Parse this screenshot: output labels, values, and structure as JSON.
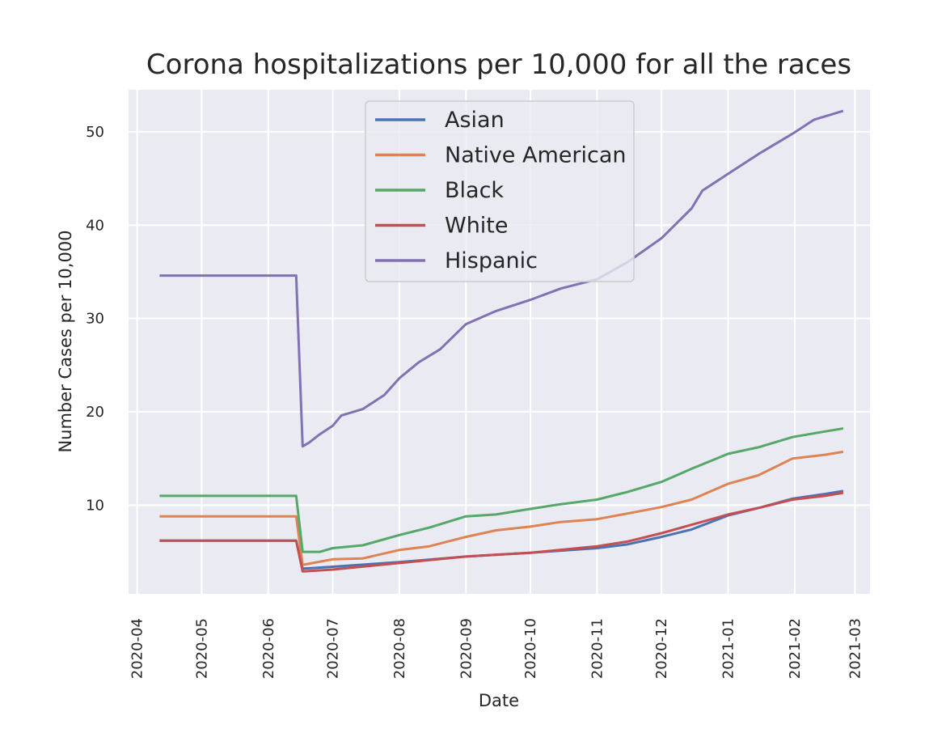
{
  "chart_data": {
    "type": "line",
    "title": "Corona hospitalizations per 10,000 for all the races",
    "xlabel": "Date",
    "ylabel": "Number Cases per 10,000",
    "x_ticks": [
      "2020-04",
      "2020-05",
      "2020-06",
      "2020-07",
      "2020-08",
      "2020-09",
      "2020-10",
      "2020-11",
      "2020-12",
      "2021-01",
      "2021-02",
      "2021-03"
    ],
    "y_ticks": [
      10,
      20,
      30,
      40,
      50
    ],
    "xlim": [
      "2020-03-28",
      "2021-03-08"
    ],
    "ylim": [
      0.5,
      54.5
    ],
    "grid": true,
    "legend_position": "top-center",
    "series": [
      {
        "name": "Asian",
        "color": "#4c72b0",
        "points": [
          [
            "2020-04-12",
            6.2
          ],
          [
            "2020-06-14",
            6.2
          ],
          [
            "2020-06-17",
            3.2
          ],
          [
            "2020-07-01",
            3.4
          ],
          [
            "2020-08-01",
            3.9
          ],
          [
            "2020-09-01",
            4.5
          ],
          [
            "2020-10-01",
            4.9
          ],
          [
            "2020-11-01",
            5.4
          ],
          [
            "2020-11-15",
            5.8
          ],
          [
            "2020-12-01",
            6.6
          ],
          [
            "2020-12-15",
            7.4
          ],
          [
            "2021-01-01",
            8.9
          ],
          [
            "2021-01-15",
            9.7
          ],
          [
            "2021-01-31",
            10.7
          ],
          [
            "2021-02-15",
            11.2
          ],
          [
            "2021-02-23",
            11.5
          ]
        ]
      },
      {
        "name": "Native American",
        "color": "#dd8452",
        "points": [
          [
            "2020-04-12",
            8.8
          ],
          [
            "2020-06-14",
            8.8
          ],
          [
            "2020-06-17",
            3.6
          ],
          [
            "2020-07-01",
            4.2
          ],
          [
            "2020-07-15",
            4.3
          ],
          [
            "2020-08-01",
            5.2
          ],
          [
            "2020-08-15",
            5.6
          ],
          [
            "2020-09-01",
            6.6
          ],
          [
            "2020-09-15",
            7.3
          ],
          [
            "2020-10-01",
            7.7
          ],
          [
            "2020-10-15",
            8.2
          ],
          [
            "2020-11-01",
            8.5
          ],
          [
            "2020-11-15",
            9.1
          ],
          [
            "2020-12-01",
            9.8
          ],
          [
            "2020-12-15",
            10.6
          ],
          [
            "2021-01-01",
            12.3
          ],
          [
            "2021-01-15",
            13.2
          ],
          [
            "2021-01-31",
            15.0
          ],
          [
            "2021-02-15",
            15.4
          ],
          [
            "2021-02-23",
            15.7
          ]
        ]
      },
      {
        "name": "Black",
        "color": "#55a868",
        "points": [
          [
            "2020-04-12",
            11.0
          ],
          [
            "2020-06-14",
            11.0
          ],
          [
            "2020-06-17",
            5.0
          ],
          [
            "2020-06-25",
            5.0
          ],
          [
            "2020-07-01",
            5.4
          ],
          [
            "2020-07-15",
            5.7
          ],
          [
            "2020-08-01",
            6.8
          ],
          [
            "2020-08-15",
            7.6
          ],
          [
            "2020-09-01",
            8.8
          ],
          [
            "2020-09-15",
            9.0
          ],
          [
            "2020-10-01",
            9.6
          ],
          [
            "2020-10-15",
            10.1
          ],
          [
            "2020-11-01",
            10.6
          ],
          [
            "2020-11-15",
            11.4
          ],
          [
            "2020-12-01",
            12.5
          ],
          [
            "2020-12-15",
            13.9
          ],
          [
            "2021-01-01",
            15.5
          ],
          [
            "2021-01-15",
            16.2
          ],
          [
            "2021-01-31",
            17.3
          ],
          [
            "2021-02-15",
            17.9
          ],
          [
            "2021-02-23",
            18.2
          ]
        ]
      },
      {
        "name": "White",
        "color": "#c44e52",
        "points": [
          [
            "2020-04-12",
            6.2
          ],
          [
            "2020-06-14",
            6.2
          ],
          [
            "2020-06-17",
            2.9
          ],
          [
            "2020-07-01",
            3.1
          ],
          [
            "2020-08-01",
            3.8
          ],
          [
            "2020-09-01",
            4.5
          ],
          [
            "2020-10-01",
            4.9
          ],
          [
            "2020-11-01",
            5.6
          ],
          [
            "2020-11-15",
            6.1
          ],
          [
            "2020-12-01",
            7.0
          ],
          [
            "2020-12-15",
            7.9
          ],
          [
            "2021-01-01",
            9.0
          ],
          [
            "2021-01-15",
            9.7
          ],
          [
            "2021-01-31",
            10.6
          ],
          [
            "2021-02-15",
            11.0
          ],
          [
            "2021-02-23",
            11.3
          ]
        ]
      },
      {
        "name": "Hispanic",
        "color": "#8172b3",
        "points": [
          [
            "2020-04-12",
            34.6
          ],
          [
            "2020-06-14",
            34.6
          ],
          [
            "2020-06-17",
            16.3
          ],
          [
            "2020-06-20",
            16.7
          ],
          [
            "2020-06-25",
            17.6
          ],
          [
            "2020-07-01",
            18.5
          ],
          [
            "2020-07-05",
            19.6
          ],
          [
            "2020-07-15",
            20.3
          ],
          [
            "2020-07-25",
            21.8
          ],
          [
            "2020-08-01",
            23.6
          ],
          [
            "2020-08-10",
            25.3
          ],
          [
            "2020-08-20",
            26.7
          ],
          [
            "2020-09-01",
            29.4
          ],
          [
            "2020-09-15",
            30.8
          ],
          [
            "2020-10-01",
            32.0
          ],
          [
            "2020-10-15",
            33.2
          ],
          [
            "2020-11-01",
            34.2
          ],
          [
            "2020-11-15",
            36.0
          ],
          [
            "2020-12-01",
            38.6
          ],
          [
            "2020-12-15",
            41.8
          ],
          [
            "2020-12-20",
            43.7
          ],
          [
            "2021-01-01",
            45.5
          ],
          [
            "2021-01-15",
            47.6
          ],
          [
            "2021-01-31",
            49.8
          ],
          [
            "2021-02-10",
            51.3
          ],
          [
            "2021-02-23",
            52.2
          ]
        ]
      }
    ]
  }
}
